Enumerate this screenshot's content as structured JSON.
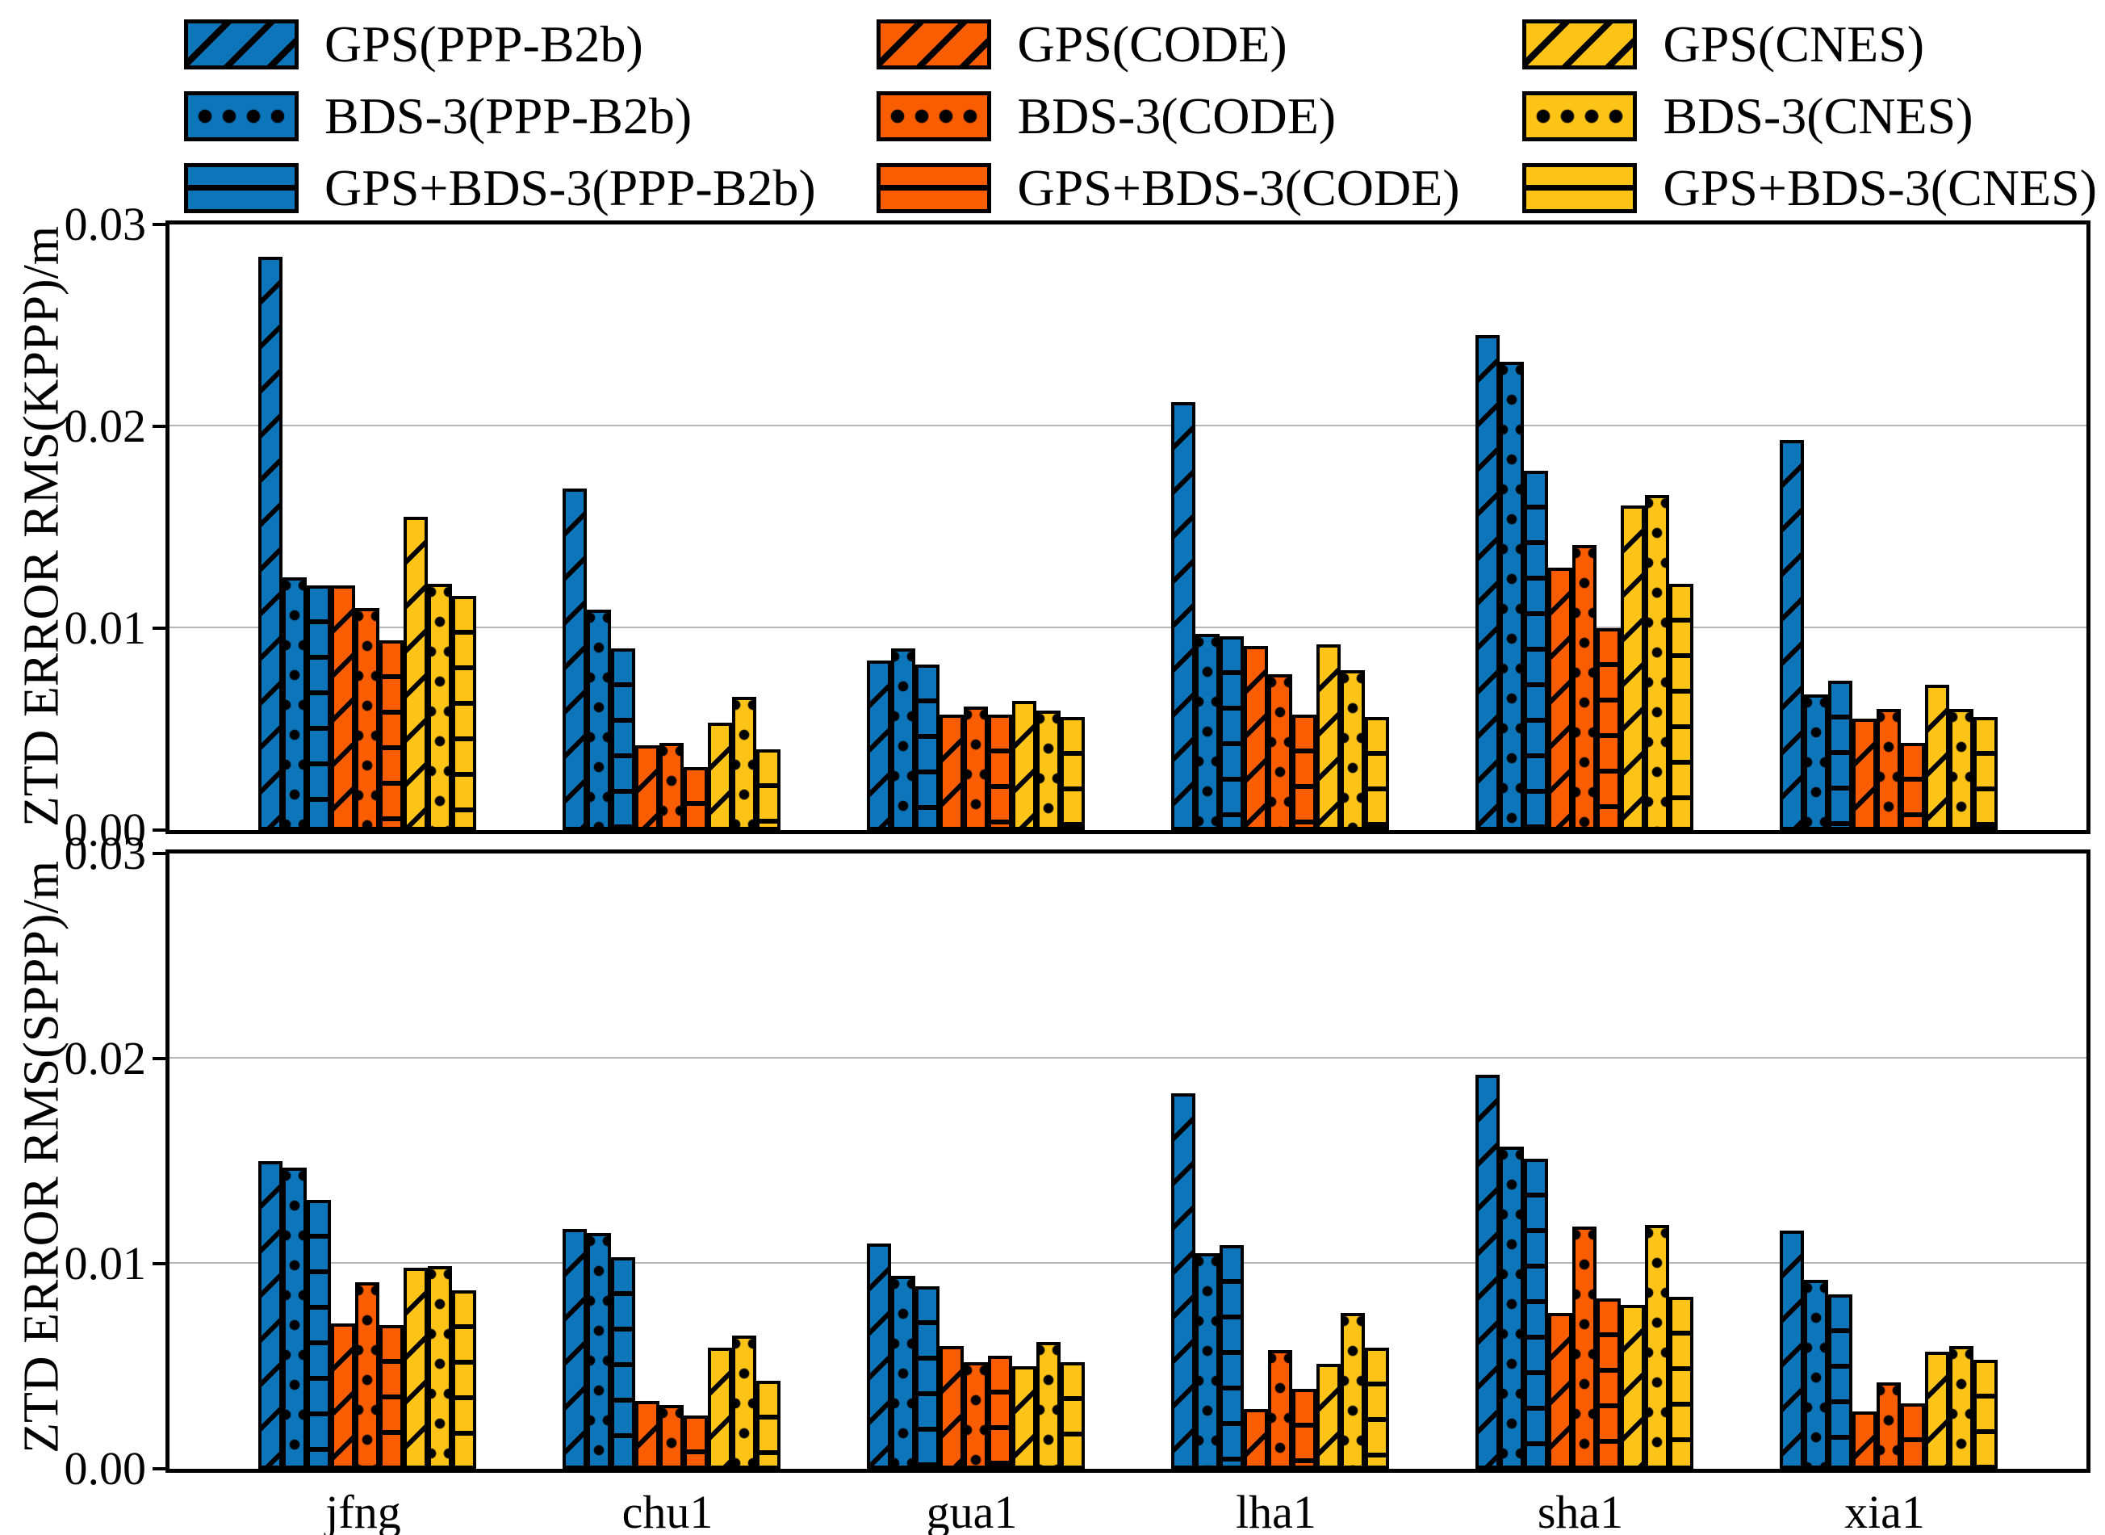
{
  "legend": {
    "columns": [
      [
        {
          "label": "GPS(PPP-B2b)",
          "hatch": "diagonal",
          "color": "#0d76bb"
        },
        {
          "label": "BDS-3(PPP-B2b)",
          "hatch": "dots",
          "color": "#0d76bb"
        },
        {
          "label": "GPS+BDS-3(PPP-B2b)",
          "hatch": "horizontal",
          "color": "#0d76bb"
        }
      ],
      [
        {
          "label": "GPS(CODE)",
          "hatch": "diagonal",
          "color": "#fa5d00"
        },
        {
          "label": "BDS-3(CODE)",
          "hatch": "dots",
          "color": "#fa5d00"
        },
        {
          "label": "GPS+BDS-3(CODE)",
          "hatch": "horizontal",
          "color": "#fa5d00"
        }
      ],
      [
        {
          "label": "GPS(CNES)",
          "hatch": "diagonal",
          "color": "#fdc317"
        },
        {
          "label": "BDS-3(CNES)",
          "hatch": "dots",
          "color": "#fdc317"
        },
        {
          "label": "GPS+BDS-3(CNES)",
          "hatch": "horizontal",
          "color": "#fdc317"
        }
      ]
    ]
  },
  "chart_data": [
    {
      "type": "bar",
      "title": "",
      "ylabel": "ZTD ERROR RMS(KPPP)/m",
      "xlabel": "",
      "categories": [
        "jfng",
        "chu1",
        "gua1",
        "lha1",
        "sha1",
        "xia1"
      ],
      "ylim": [
        0,
        0.03
      ],
      "yticks": [
        "0.03",
        "0.02",
        "0.01",
        "0.00"
      ],
      "grid": "horizontal",
      "legend_position": "top",
      "series": [
        {
          "name": "GPS(PPP-B2b)",
          "color": "#0d76bb",
          "hatch": "diagonal",
          "values": [
            0.0284,
            0.0169,
            0.0084,
            0.0212,
            0.0245,
            0.0193
          ]
        },
        {
          "name": "BDS-3(PPP-B2b)",
          "color": "#0d76bb",
          "hatch": "dots",
          "values": [
            0.0125,
            0.0109,
            0.009,
            0.0097,
            0.0232,
            0.0067
          ]
        },
        {
          "name": "GPS+BDS-3(PPP-B2b)",
          "color": "#0d76bb",
          "hatch": "horizontal",
          "values": [
            0.0121,
            0.009,
            0.0082,
            0.0096,
            0.0178,
            0.0074
          ]
        },
        {
          "name": "GPS(CODE)",
          "color": "#fa5d00",
          "hatch": "diagonal",
          "values": [
            0.0121,
            0.0042,
            0.0057,
            0.0091,
            0.013,
            0.0055
          ]
        },
        {
          "name": "BDS-3(CODE)",
          "color": "#fa5d00",
          "hatch": "dots",
          "values": [
            0.011,
            0.0043,
            0.0061,
            0.0077,
            0.0141,
            0.006
          ]
        },
        {
          "name": "GPS+BDS-3(CODE)",
          "color": "#fa5d00",
          "hatch": "horizontal",
          "values": [
            0.0094,
            0.0031,
            0.0057,
            0.0057,
            0.01,
            0.0043
          ]
        },
        {
          "name": "GPS(CNES)",
          "color": "#fdc317",
          "hatch": "diagonal",
          "values": [
            0.0155,
            0.0053,
            0.0064,
            0.0092,
            0.0161,
            0.0072
          ]
        },
        {
          "name": "BDS-3(CNES)",
          "color": "#fdc317",
          "hatch": "dots",
          "values": [
            0.0122,
            0.0066,
            0.0059,
            0.0079,
            0.0166,
            0.006
          ]
        },
        {
          "name": "GPS+BDS-3(CNES)",
          "color": "#fdc317",
          "hatch": "horizontal",
          "values": [
            0.0116,
            0.004,
            0.0056,
            0.0056,
            0.0122,
            0.0056
          ]
        }
      ]
    },
    {
      "type": "bar",
      "title": "",
      "ylabel": "ZTD ERROR RMS(SPPP)/m",
      "xlabel": "",
      "categories": [
        "jfng",
        "chu1",
        "gua1",
        "lha1",
        "sha1",
        "xia1"
      ],
      "ylim": [
        0,
        0.03
      ],
      "yticks": [
        "0.03",
        "0.02",
        "0.01",
        "0.00"
      ],
      "grid": "horizontal",
      "legend_position": "top",
      "series": [
        {
          "name": "GPS(PPP-B2b)",
          "color": "#0d76bb",
          "hatch": "diagonal",
          "values": [
            0.015,
            0.0117,
            0.011,
            0.0183,
            0.0192,
            0.0116
          ]
        },
        {
          "name": "BDS-3(PPP-B2b)",
          "color": "#0d76bb",
          "hatch": "dots",
          "values": [
            0.0147,
            0.0115,
            0.0094,
            0.0105,
            0.0157,
            0.0092
          ]
        },
        {
          "name": "GPS+BDS-3(PPP-B2b)",
          "color": "#0d76bb",
          "hatch": "horizontal",
          "values": [
            0.0131,
            0.0103,
            0.0089,
            0.0109,
            0.0151,
            0.0085
          ]
        },
        {
          "name": "GPS(CODE)",
          "color": "#fa5d00",
          "hatch": "diagonal",
          "values": [
            0.0071,
            0.0033,
            0.006,
            0.0029,
            0.0076,
            0.0028
          ]
        },
        {
          "name": "BDS-3(CODE)",
          "color": "#fa5d00",
          "hatch": "dots",
          "values": [
            0.0091,
            0.0031,
            0.0052,
            0.0058,
            0.0118,
            0.0042
          ]
        },
        {
          "name": "GPS+BDS-3(CODE)",
          "color": "#fa5d00",
          "hatch": "horizontal",
          "values": [
            0.007,
            0.0026,
            0.0055,
            0.0039,
            0.0083,
            0.0032
          ]
        },
        {
          "name": "GPS(CNES)",
          "color": "#fdc317",
          "hatch": "diagonal",
          "values": [
            0.0098,
            0.0059,
            0.005,
            0.0051,
            0.008,
            0.0057
          ]
        },
        {
          "name": "BDS-3(CNES)",
          "color": "#fdc317",
          "hatch": "dots",
          "values": [
            0.0099,
            0.0065,
            0.0062,
            0.0076,
            0.0119,
            0.006
          ]
        },
        {
          "name": "GPS+BDS-3(CNES)",
          "color": "#fdc317",
          "hatch": "horizontal",
          "values": [
            0.0087,
            0.0043,
            0.0052,
            0.0059,
            0.0084,
            0.0053
          ]
        }
      ]
    }
  ]
}
